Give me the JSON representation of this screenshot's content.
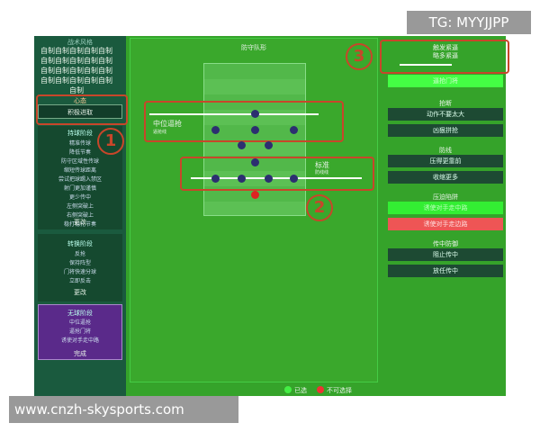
{
  "watermarks": {
    "top": "TG: MYYJJPP",
    "bottom": "www.cnzh-skysports.com"
  },
  "left_panel": {
    "style_label": "战术风格",
    "style_name": "自制自制自制自制自制自制自制自制自制自制自制自制自制自制自制自制自制自制自制自制自制",
    "mentality_label": "心态",
    "mentality": "积极进取",
    "in_possession": {
      "title": "持球阶段",
      "items": [
        "精准传球",
        "降低节奏",
        "防守区域性传球",
        "缩短传球距离",
        "尝试把球踢入禁区",
        "射门更加谨慎",
        "更少传中",
        "左侧突破上",
        "右侧突破上",
        "稳打稳扎节奏"
      ],
      "button": "更改"
    },
    "transition": {
      "title": "转换阶段",
      "items": [
        "反抢",
        "保持阵型",
        "门将快速分球",
        "立即反击"
      ],
      "button": "更改"
    },
    "out_of_possession": {
      "title": "无球阶段",
      "items": [
        "中位逼抢",
        "逼抢门将",
        "诱使对手走中路"
      ],
      "button": "完成"
    }
  },
  "pitch": {
    "title": "防守队形",
    "pressing_line": {
      "label": "中位逼抢",
      "sub": "逼抢线"
    },
    "defensive_line": {
      "label": "标准",
      "sub": "防线线"
    }
  },
  "annotations": [
    "1",
    "2",
    "3"
  ],
  "right_panel": {
    "trigger_press": {
      "title": "触发紧逼",
      "value": "略多紧逼",
      "button": "逼抢门将"
    },
    "tackling": {
      "title": "抢断",
      "options": [
        "动作不要太大",
        "凶狠拼抢"
      ]
    },
    "defensive_line": {
      "title": "防线",
      "options": [
        "压得更靠前",
        "收缩更多"
      ]
    },
    "pressing_trap": {
      "title": "压迫陷阱",
      "selected": "诱使对手走中路",
      "unavailable": "诱使对手走边路"
    },
    "crossing": {
      "title": "传中防御",
      "options": [
        "阻止传中",
        "放任传中"
      ]
    }
  },
  "legend": {
    "selected": "已选",
    "unavailable": "不可选择"
  }
}
